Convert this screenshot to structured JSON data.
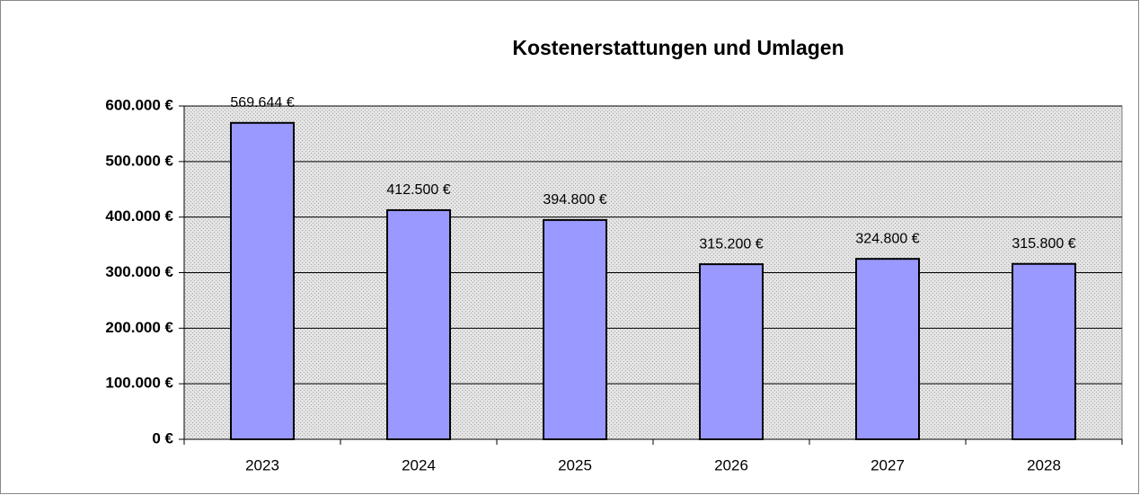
{
  "chart_data": {
    "type": "bar",
    "title": "Kostenerstattungen und Umlagen",
    "categories": [
      "2023",
      "2024",
      "2025",
      "2026",
      "2027",
      "2028"
    ],
    "values": [
      569644,
      412500,
      394800,
      315200,
      324800,
      315800
    ],
    "value_labels": [
      "569.644 €",
      "412.500 €",
      "394.800 €",
      "315.200 €",
      "324.800 €",
      "315.800 €"
    ],
    "color": "#9999ff",
    "ylim": [
      0,
      600000
    ],
    "yticks": [
      {
        "value": 0,
        "label": "0 €"
      },
      {
        "value": 100000,
        "label": "100.000 €"
      },
      {
        "value": 200000,
        "label": "200.000 €"
      },
      {
        "value": 300000,
        "label": "300.000 €"
      },
      {
        "value": 400000,
        "label": "400.000 €"
      },
      {
        "value": 500000,
        "label": "500.000 €"
      },
      {
        "value": 600000,
        "label": "600.000 €"
      }
    ],
    "grid": true
  }
}
